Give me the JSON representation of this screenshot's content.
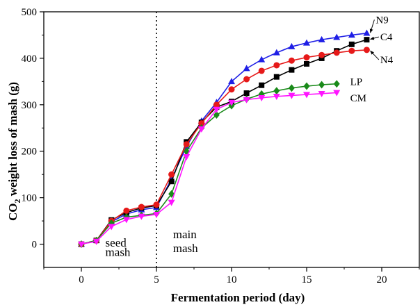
{
  "chart_data": {
    "type": "line",
    "title": "",
    "xlabel": "Fermentation period (day)",
    "ylabel_main": "CO",
    "ylabel_sub": "2",
    "ylabel_rest": " weight loss of mash (g)",
    "xlim": [
      -2.5,
      22.5
    ],
    "ylim": [
      -50,
      500
    ],
    "xticks": [
      0,
      5,
      10,
      15,
      20
    ],
    "yticks": [
      0,
      100,
      200,
      300,
      400,
      500
    ],
    "grid": false,
    "divider_x": 5,
    "annotations": [
      {
        "text": "seed",
        "x": 1.6,
        "y": -5
      },
      {
        "text": "mash",
        "x": 1.6,
        "y": -25
      },
      {
        "text": "main",
        "x": 6.1,
        "y": 13
      },
      {
        "text": "mash",
        "x": 6.1,
        "y": -17
      }
    ],
    "series": [
      {
        "name": "N9",
        "color": "#1f1fe6",
        "marker": "triangle-up",
        "x": [
          0,
          1,
          2,
          3,
          4,
          5,
          6,
          7,
          8,
          9,
          10,
          11,
          12,
          13,
          14,
          15,
          16,
          17,
          18,
          19
        ],
        "y": [
          0,
          8,
          48,
          65,
          74,
          79,
          140,
          210,
          265,
          305,
          350,
          378,
          397,
          412,
          425,
          433,
          440,
          445,
          450,
          454
        ],
        "label_pos": [
          19.6,
          483
        ],
        "arrow_to": [
          19.1,
          455
        ]
      },
      {
        "name": "C4",
        "color": "#000000",
        "marker": "square",
        "x": [
          0,
          1,
          2,
          3,
          4,
          5,
          6,
          7,
          8,
          9,
          10,
          11,
          12,
          13,
          14,
          15,
          16,
          17,
          18,
          19
        ],
        "y": [
          0,
          8,
          52,
          68,
          78,
          83,
          135,
          220,
          262,
          295,
          307,
          325,
          342,
          360,
          375,
          388,
          400,
          416,
          430,
          440
        ],
        "label_pos": [
          19.9,
          446
        ],
        "arrow_to": [
          19.1,
          441
        ]
      },
      {
        "name": "N4",
        "color": "#e61919",
        "marker": "circle",
        "x": [
          0,
          1,
          2,
          3,
          4,
          5,
          6,
          7,
          8,
          9,
          10,
          11,
          12,
          13,
          14,
          15,
          16,
          17,
          18,
          19
        ],
        "y": [
          0,
          8,
          50,
          72,
          80,
          85,
          150,
          215,
          260,
          300,
          333,
          355,
          373,
          385,
          395,
          402,
          407,
          412,
          416,
          418
        ],
        "label_pos": [
          19.9,
          397
        ],
        "arrow_to": [
          19.1,
          416
        ]
      },
      {
        "name": "LP",
        "color": "#1a8a1a",
        "marker": "diamond",
        "x": [
          0,
          1,
          2,
          3,
          4,
          5,
          6,
          7,
          8,
          9,
          10,
          11,
          12,
          13,
          14,
          15,
          16,
          17
        ],
        "y": [
          0,
          8,
          45,
          58,
          62,
          66,
          108,
          200,
          250,
          278,
          298,
          312,
          323,
          330,
          336,
          340,
          343,
          345
        ],
        "label_pos": [
          17.9,
          350
        ]
      },
      {
        "name": "CM",
        "color": "#ff14ff",
        "marker": "triangle-down",
        "x": [
          0,
          1,
          2,
          3,
          4,
          5,
          6,
          7,
          8,
          9,
          10,
          11,
          12,
          13,
          14,
          15,
          16,
          17
        ],
        "y": [
          0,
          6,
          38,
          53,
          60,
          64,
          90,
          188,
          248,
          290,
          305,
          311,
          315,
          318,
          320,
          322,
          324,
          326
        ],
        "label_pos": [
          17.9,
          315
        ]
      }
    ]
  }
}
